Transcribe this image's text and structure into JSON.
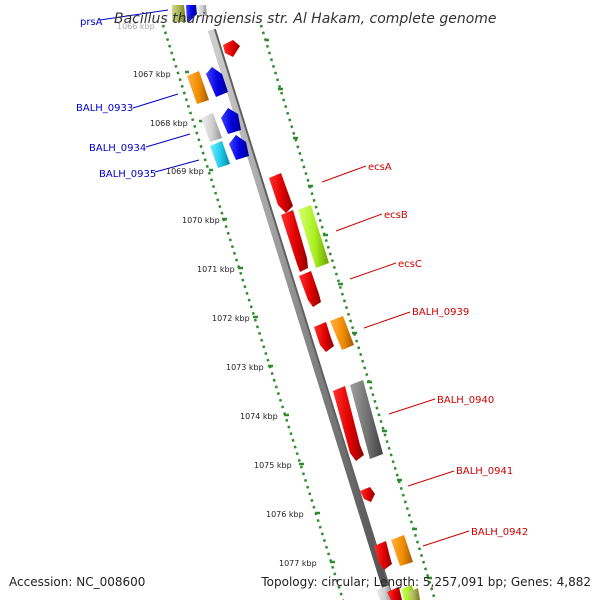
{
  "title": "Bacillus thuringiensis str. Al Hakam, complete genome",
  "colors": {
    "backbone": "#8c8c8c",
    "tick": "#2e8b2e",
    "minus_strand_label": "#0000cc",
    "plus_strand_label": "#cc0000"
  },
  "ticks": [
    {
      "label": "1066 kbp"
    },
    {
      "label": "1067 kbp"
    },
    {
      "label": "1068 kbp"
    },
    {
      "label": "1069 kbp"
    },
    {
      "label": "1070 kbp"
    },
    {
      "label": "1071 kbp"
    },
    {
      "label": "1072 kbp"
    },
    {
      "label": "1073 kbp"
    },
    {
      "label": "1074 kbp"
    },
    {
      "label": "1075 kbp"
    },
    {
      "label": "1076 kbp"
    },
    {
      "label": "1077 kbp"
    }
  ],
  "labels": [
    {
      "text": "prsA",
      "strand": "minus"
    },
    {
      "text": "BALH_0933",
      "strand": "minus"
    },
    {
      "text": "BALH_0934",
      "strand": "minus"
    },
    {
      "text": "BALH_0935",
      "strand": "minus"
    },
    {
      "text": "ecsA",
      "strand": "plus"
    },
    {
      "text": "ecsB",
      "strand": "plus"
    },
    {
      "text": "ecsC",
      "strand": "plus"
    },
    {
      "text": "BALH_0939",
      "strand": "plus"
    },
    {
      "text": "BALH_0940",
      "strand": "plus"
    },
    {
      "text": "BALH_0941",
      "strand": "plus"
    },
    {
      "text": "BALH_0942",
      "strand": "plus"
    }
  ],
  "footer": {
    "accession": "Accession: NC_008600",
    "stats": "Topology: circular; Length: 5,257,091 bp; Genes: 4,882"
  }
}
